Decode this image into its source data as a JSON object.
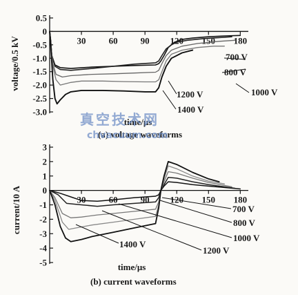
{
  "watermark": {
    "cn": "真空技术网",
    "url": "chvacuum.com"
  },
  "chart_data": [
    {
      "type": "line",
      "caption": "(a) voltage waveforms",
      "xlabel": "time/μs",
      "ylabel": "voltage/0.5 kV",
      "xlim": [
        0,
        185
      ],
      "ylim": [
        -3.0,
        0.5
      ],
      "xticks": [
        30,
        60,
        90,
        120,
        150,
        180
      ],
      "yticks": [
        0.5,
        0,
        -0.5,
        -1.0,
        -1.5,
        -2.0,
        -2.5,
        -3.0
      ],
      "ytick_labels": [
        "0.5",
        "0",
        "-0.5",
        "-1.0",
        "-1.5",
        "-2.0",
        "-2.5",
        "-3.0"
      ],
      "series": [
        {
          "name": "700 V",
          "x": [
            0,
            1,
            2,
            5,
            10,
            20,
            40,
            60,
            80,
            100,
            103,
            105,
            108,
            112,
            118,
            125,
            135,
            150,
            165,
            180
          ],
          "y": [
            0,
            -0.35,
            -0.9,
            -1.25,
            -1.35,
            -1.38,
            -1.33,
            -1.3,
            -1.27,
            -1.25,
            -1.2,
            -1.1,
            -0.9,
            -0.6,
            -0.4,
            -0.3,
            -0.25,
            -0.2,
            -0.17,
            -0.15
          ]
        },
        {
          "name": "800 V",
          "x": [
            0,
            1,
            2,
            5,
            10,
            20,
            40,
            60,
            80,
            100,
            103,
            106,
            110,
            115,
            120,
            130,
            145,
            160,
            172
          ],
          "y": [
            0,
            -0.35,
            -0.9,
            -1.3,
            -1.42,
            -1.45,
            -1.38,
            -1.3,
            -1.22,
            -1.17,
            -1.1,
            -0.9,
            -0.65,
            -0.5,
            -0.4,
            -0.33,
            -0.27,
            -0.23,
            -0.2
          ]
        },
        {
          "name": "1000 V",
          "x": [
            0,
            1,
            3,
            6,
            12,
            20,
            40,
            60,
            80,
            100,
            103,
            106,
            110,
            115,
            125,
            140,
            160,
            175
          ],
          "y": [
            0,
            -0.4,
            -1.2,
            -1.6,
            -1.7,
            -1.65,
            -1.6,
            -1.58,
            -1.55,
            -1.52,
            -1.45,
            -1.2,
            -0.9,
            -0.7,
            -0.55,
            -0.45,
            -0.37,
            -0.33
          ]
        },
        {
          "name": "1200 V",
          "x": [
            0,
            1,
            3,
            6,
            10,
            20,
            30,
            50,
            70,
            90,
            100,
            103,
            106,
            110,
            115,
            125,
            140,
            155,
            165
          ],
          "y": [
            0,
            -0.4,
            -1.3,
            -1.8,
            -2.0,
            -1.9,
            -1.85,
            -1.85,
            -1.87,
            -1.88,
            -1.88,
            -1.8,
            -1.5,
            -1.1,
            -0.85,
            -0.7,
            -0.6,
            -0.55,
            -0.55
          ]
        },
        {
          "name": "1400 V",
          "x": [
            0,
            1,
            3,
            5,
            7,
            10,
            15,
            20,
            30,
            50,
            70,
            90,
            100,
            103,
            106,
            110,
            115,
            125,
            135
          ],
          "y": [
            0,
            -0.5,
            -1.8,
            -2.5,
            -2.7,
            -2.55,
            -2.35,
            -2.25,
            -2.2,
            -2.2,
            -2.22,
            -2.25,
            -2.25,
            -2.1,
            -1.7,
            -1.3,
            -1.0,
            -0.8,
            -0.7
          ]
        }
      ],
      "series_labels": [
        "700 V",
        "800 V",
        "1000 V",
        "1200 V",
        "1400 V"
      ]
    },
    {
      "type": "line",
      "caption": "(b) current waveforms",
      "xlabel": "time/μs",
      "ylabel": "current/10 A",
      "xlim": [
        0,
        185
      ],
      "ylim": [
        -5,
        3
      ],
      "xticks": [
        30,
        60,
        90,
        120,
        150,
        180
      ],
      "yticks": [
        3,
        2,
        1,
        0,
        -1,
        -2,
        -3,
        -4,
        -5
      ],
      "series": [
        {
          "name": "700 V",
          "x": [
            0,
            10,
            20,
            30,
            45,
            60,
            80,
            100,
            103,
            105,
            108,
            112,
            120,
            135,
            150,
            165,
            180
          ],
          "y": [
            0,
            -0.2,
            -0.45,
            -0.7,
            -0.75,
            -0.65,
            -0.5,
            -0.4,
            -0.3,
            0,
            0.3,
            0.6,
            0.55,
            0.4,
            0.3,
            0.2,
            0.1
          ]
        },
        {
          "name": "800 V",
          "x": [
            0,
            8,
            16,
            30,
            45,
            60,
            80,
            100,
            103,
            105,
            108,
            112,
            120,
            135,
            150,
            165,
            175
          ],
          "y": [
            0,
            -0.3,
            -0.9,
            -1.0,
            -1.1,
            -1.0,
            -0.9,
            -0.8,
            -0.5,
            0,
            0.4,
            0.9,
            0.85,
            0.6,
            0.4,
            0.25,
            0.15
          ]
        },
        {
          "name": "1000 V",
          "x": [
            0,
            5,
            12,
            20,
            30,
            45,
            60,
            80,
            100,
            103,
            105,
            108,
            112,
            120,
            135,
            150,
            165,
            172
          ],
          "y": [
            0,
            -0.5,
            -1.6,
            -1.9,
            -1.85,
            -1.7,
            -1.6,
            -1.45,
            -1.3,
            -0.8,
            0,
            0.6,
            1.3,
            1.2,
            0.85,
            0.55,
            0.35,
            0.25
          ]
        },
        {
          "name": "1200 V",
          "x": [
            0,
            5,
            12,
            18,
            25,
            40,
            60,
            80,
            100,
            103,
            105,
            108,
            112,
            120,
            135,
            150,
            165
          ],
          "y": [
            0,
            -0.7,
            -2.2,
            -2.7,
            -2.6,
            -2.4,
            -2.2,
            -2.0,
            -1.8,
            -1.0,
            0,
            0.8,
            1.7,
            1.5,
            1.0,
            0.65,
            0.45
          ]
        },
        {
          "name": "1400 V",
          "x": [
            0,
            5,
            10,
            15,
            20,
            30,
            40,
            60,
            80,
            100,
            103,
            105,
            108,
            112,
            120,
            135,
            150,
            160
          ],
          "y": [
            0,
            -1.0,
            -2.5,
            -3.3,
            -3.55,
            -3.4,
            -3.2,
            -2.9,
            -2.6,
            -2.3,
            -1.2,
            0,
            1.0,
            2.0,
            1.8,
            1.25,
            0.8,
            0.6
          ]
        }
      ],
      "series_labels": [
        "700 V",
        "800 V",
        "1000 V",
        "1200 V",
        "1400 V"
      ]
    }
  ]
}
